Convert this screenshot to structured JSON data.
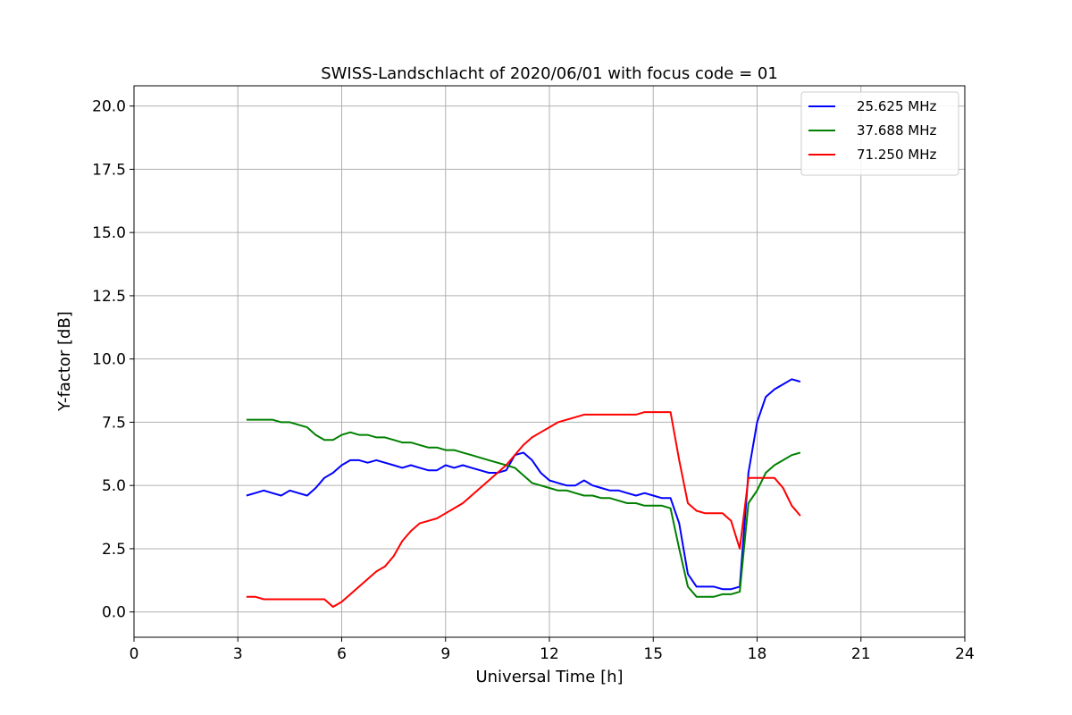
{
  "chart_data": {
    "type": "line",
    "title": "SWISS-Landschlacht of 2020/06/01 with focus code = 01",
    "xlabel": "Universal Time [h]",
    "ylabel": "Y-factor [dB]",
    "xlim": [
      0,
      24
    ],
    "ylim": [
      -1.0,
      20.8
    ],
    "xticks": [
      0,
      3,
      6,
      9,
      12,
      15,
      18,
      21,
      24
    ],
    "xtick_labels": [
      "0",
      "3",
      "6",
      "9",
      "12",
      "15",
      "18",
      "21",
      "24"
    ],
    "yticks": [
      0.0,
      2.5,
      5.0,
      7.5,
      10.0,
      12.5,
      15.0,
      17.5,
      20.0
    ],
    "ytick_labels": [
      "0.0",
      "2.5",
      "5.0",
      "7.5",
      "10.0",
      "12.5",
      "15.0",
      "17.5",
      "20.0"
    ],
    "grid": true,
    "legend_position": "top-right",
    "series": [
      {
        "name": "25.625 MHz",
        "color": "#0000ff",
        "x": [
          3.25,
          3.5,
          3.75,
          4.0,
          4.25,
          4.5,
          4.75,
          5.0,
          5.25,
          5.5,
          5.75,
          6.0,
          6.25,
          6.5,
          6.75,
          7.0,
          7.25,
          7.5,
          7.75,
          8.0,
          8.25,
          8.5,
          8.75,
          9.0,
          9.25,
          9.5,
          9.75,
          10.0,
          10.25,
          10.5,
          10.75,
          11.0,
          11.25,
          11.5,
          11.75,
          12.0,
          12.25,
          12.5,
          12.75,
          13.0,
          13.25,
          13.5,
          13.75,
          14.0,
          14.25,
          14.5,
          14.75,
          15.0,
          15.25,
          15.5,
          15.75,
          16.0,
          16.25,
          16.5,
          16.75,
          17.0,
          17.25,
          17.5,
          17.75,
          18.0,
          18.25,
          18.5,
          18.75,
          19.0,
          19.25
        ],
        "y": [
          4.6,
          4.7,
          4.8,
          4.7,
          4.6,
          4.8,
          4.7,
          4.6,
          4.9,
          5.3,
          5.5,
          5.8,
          6.0,
          6.0,
          5.9,
          6.0,
          5.9,
          5.8,
          5.7,
          5.8,
          5.7,
          5.6,
          5.6,
          5.8,
          5.7,
          5.8,
          5.7,
          5.6,
          5.5,
          5.5,
          5.6,
          6.2,
          6.3,
          6.0,
          5.5,
          5.2,
          5.1,
          5.0,
          5.0,
          5.2,
          5.0,
          4.9,
          4.8,
          4.8,
          4.7,
          4.6,
          4.7,
          4.6,
          4.5,
          4.5,
          3.5,
          1.5,
          1.0,
          1.0,
          1.0,
          0.9,
          0.9,
          1.0,
          5.5,
          7.5,
          8.5,
          8.8,
          9.0,
          9.2,
          9.1
        ]
      },
      {
        "name": "37.688 MHz",
        "color": "#008000",
        "x": [
          3.25,
          3.5,
          3.75,
          4.0,
          4.25,
          4.5,
          4.75,
          5.0,
          5.25,
          5.5,
          5.75,
          6.0,
          6.25,
          6.5,
          6.75,
          7.0,
          7.25,
          7.5,
          7.75,
          8.0,
          8.25,
          8.5,
          8.75,
          9.0,
          9.25,
          9.5,
          9.75,
          10.0,
          10.25,
          10.5,
          10.75,
          11.0,
          11.25,
          11.5,
          11.75,
          12.0,
          12.25,
          12.5,
          12.75,
          13.0,
          13.25,
          13.5,
          13.75,
          14.0,
          14.25,
          14.5,
          14.75,
          15.0,
          15.25,
          15.5,
          15.75,
          16.0,
          16.25,
          16.5,
          16.75,
          17.0,
          17.25,
          17.5,
          17.75,
          18.0,
          18.25,
          18.5,
          18.75,
          19.0,
          19.25
        ],
        "y": [
          7.6,
          7.6,
          7.6,
          7.6,
          7.5,
          7.5,
          7.4,
          7.3,
          7.0,
          6.8,
          6.8,
          7.0,
          7.1,
          7.0,
          7.0,
          6.9,
          6.9,
          6.8,
          6.7,
          6.7,
          6.6,
          6.5,
          6.5,
          6.4,
          6.4,
          6.3,
          6.2,
          6.1,
          6.0,
          5.9,
          5.8,
          5.7,
          5.4,
          5.1,
          5.0,
          4.9,
          4.8,
          4.8,
          4.7,
          4.6,
          4.6,
          4.5,
          4.5,
          4.4,
          4.3,
          4.3,
          4.2,
          4.2,
          4.2,
          4.1,
          2.5,
          1.0,
          0.6,
          0.6,
          0.6,
          0.7,
          0.7,
          0.8,
          4.3,
          4.8,
          5.5,
          5.8,
          6.0,
          6.2,
          6.3
        ]
      },
      {
        "name": "71.250 MHz",
        "color": "#ff0000",
        "x": [
          3.25,
          3.5,
          3.75,
          4.0,
          4.25,
          4.5,
          4.75,
          5.0,
          5.25,
          5.5,
          5.75,
          6.0,
          6.25,
          6.5,
          6.75,
          7.0,
          7.25,
          7.5,
          7.75,
          8.0,
          8.25,
          8.5,
          8.75,
          9.0,
          9.25,
          9.5,
          9.75,
          10.0,
          10.25,
          10.5,
          10.75,
          11.0,
          11.25,
          11.5,
          11.75,
          12.0,
          12.25,
          12.5,
          12.75,
          13.0,
          13.25,
          13.5,
          13.75,
          14.0,
          14.25,
          14.5,
          14.75,
          15.0,
          15.25,
          15.5,
          15.75,
          16.0,
          16.25,
          16.5,
          16.75,
          17.0,
          17.25,
          17.5,
          17.75,
          18.0,
          18.25,
          18.5,
          18.75,
          19.0,
          19.25
        ],
        "y": [
          0.6,
          0.6,
          0.5,
          0.5,
          0.5,
          0.5,
          0.5,
          0.5,
          0.5,
          0.5,
          0.2,
          0.4,
          0.7,
          1.0,
          1.3,
          1.6,
          1.8,
          2.2,
          2.8,
          3.2,
          3.5,
          3.6,
          3.7,
          3.9,
          4.1,
          4.3,
          4.6,
          4.9,
          5.2,
          5.5,
          5.8,
          6.2,
          6.6,
          6.9,
          7.1,
          7.3,
          7.5,
          7.6,
          7.7,
          7.8,
          7.8,
          7.8,
          7.8,
          7.8,
          7.8,
          7.8,
          7.9,
          7.9,
          7.9,
          7.9,
          6.0,
          4.3,
          4.0,
          3.9,
          3.9,
          3.9,
          3.6,
          2.5,
          5.3,
          5.3,
          5.3,
          5.3,
          4.9,
          4.2,
          3.8
        ]
      }
    ]
  }
}
